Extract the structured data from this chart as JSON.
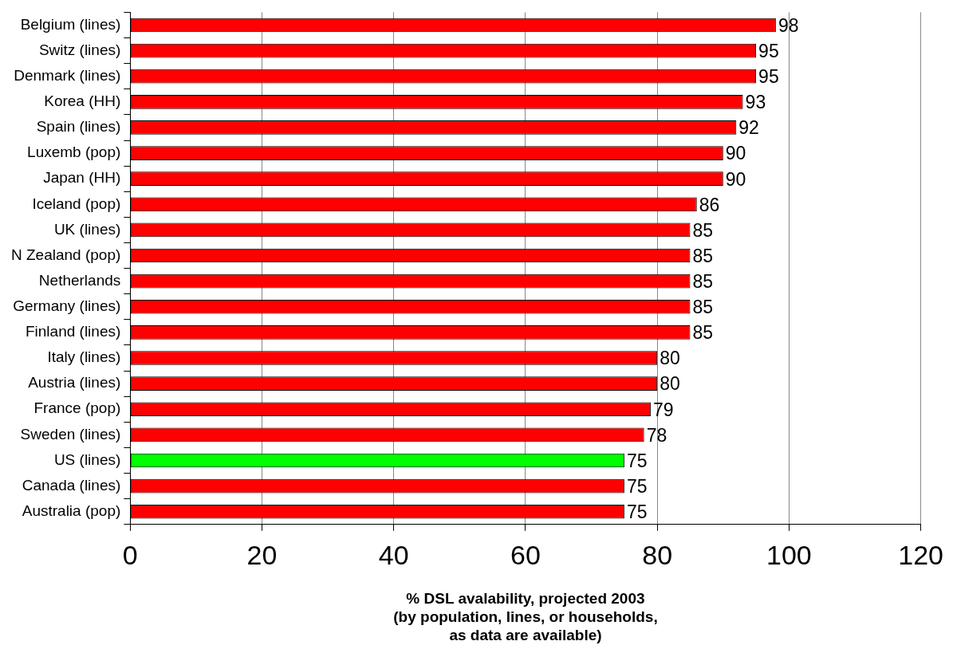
{
  "chart_data": {
    "type": "bar",
    "orientation": "horizontal",
    "categories": [
      "Belgium (lines)",
      "Switz (lines)",
      "Denmark (lines)",
      "Korea (HH)",
      "Spain (lines)",
      "Luxemb (pop)",
      "Japan (HH)",
      "Iceland (pop)",
      "UK (lines)",
      "N Zealand (pop)",
      "Netherlands",
      "Germany (lines)",
      "Finland (lines)",
      "Italy (lines)",
      "Austria (lines)",
      "France (pop)",
      "Sweden (lines)",
      "US (lines)",
      "Canada (lines)",
      "Australia (pop)"
    ],
    "values": [
      98,
      95,
      95,
      93,
      92,
      90,
      90,
      86,
      85,
      85,
      85,
      85,
      85,
      80,
      80,
      79,
      78,
      75,
      75,
      75
    ],
    "colors": [
      "#ff0000",
      "#ff0000",
      "#ff0000",
      "#ff0000",
      "#ff0000",
      "#ff0000",
      "#ff0000",
      "#ff0000",
      "#ff0000",
      "#ff0000",
      "#ff0000",
      "#ff0000",
      "#ff0000",
      "#ff0000",
      "#ff0000",
      "#ff0000",
      "#ff0000",
      "#00ff00",
      "#ff0000",
      "#ff0000"
    ],
    "xlabel": "% DSL avalability, projected 2003\n(by population, lines, or households,\nas data are available)",
    "xlim": [
      0,
      120
    ],
    "xticks": [
      0,
      20,
      40,
      60,
      80,
      100,
      120
    ],
    "grid": "x",
    "data_labels": true,
    "legend": false
  }
}
